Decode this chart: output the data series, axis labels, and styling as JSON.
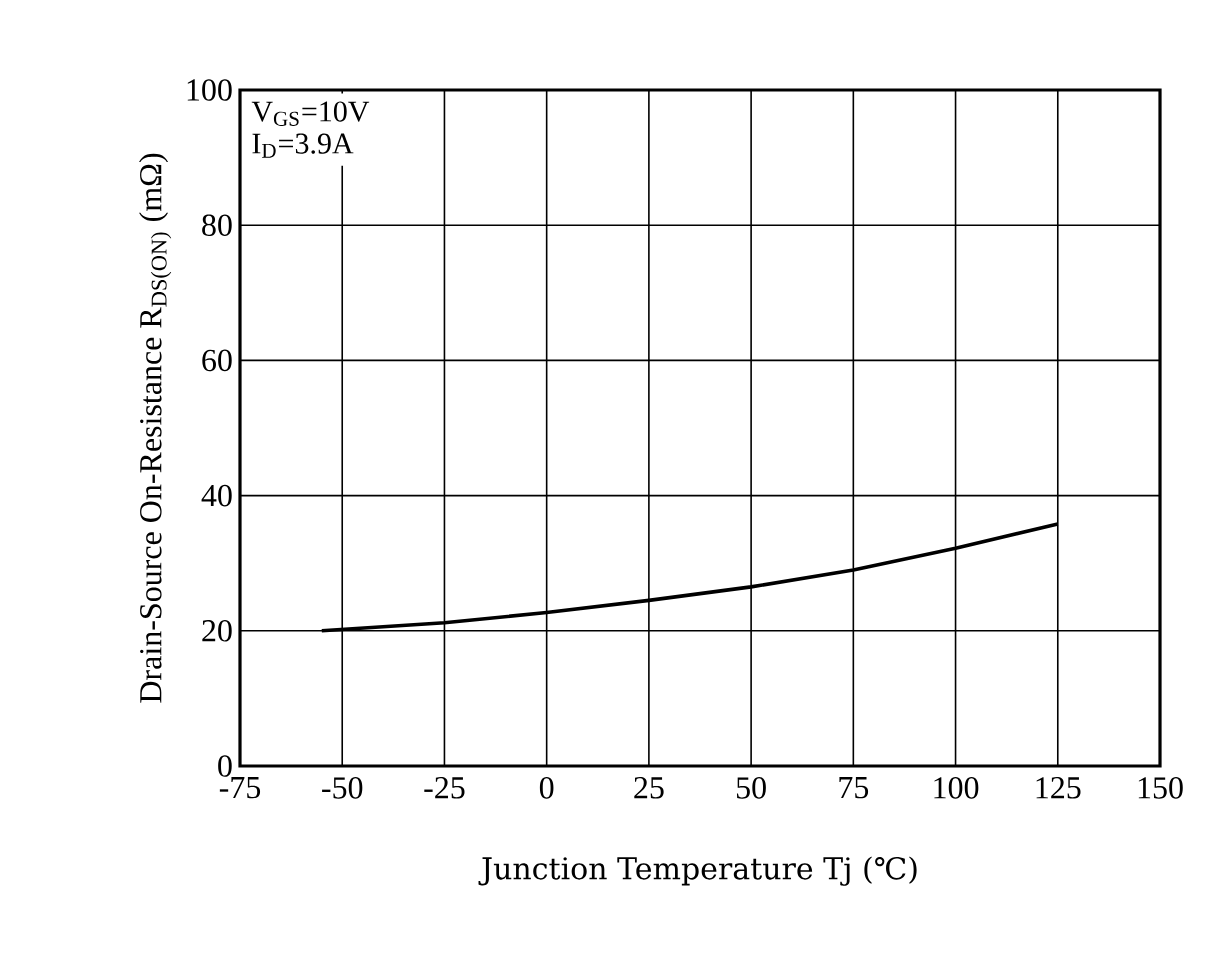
{
  "chart_data": {
    "type": "line",
    "xlabel": "Junction Temperature  Tj (℃)",
    "ylabel": "Drain-Source On-Resistance R$_{DS(ON)}$ (mΩ)",
    "annotations": [
      "V$_{GS}$=10V",
      "I$_{D}$=3.9A"
    ],
    "x": [
      -55,
      -25,
      0,
      25,
      50,
      75,
      100,
      125
    ],
    "series": [
      {
        "color": "#000000",
        "values": [
          20,
          21.2,
          22.7,
          24.5,
          26.5,
          29,
          32.2,
          35.8
        ]
      }
    ],
    "xlim": [
      -75,
      150
    ],
    "xticks": [
      -75,
      -50,
      -25,
      0,
      25,
      50,
      75,
      100,
      125,
      150
    ],
    "ylim": [
      0,
      100
    ],
    "yticks": [
      0,
      20,
      40,
      60,
      80,
      100
    ],
    "grid": true,
    "marker": "none",
    "line_style": "solid"
  }
}
